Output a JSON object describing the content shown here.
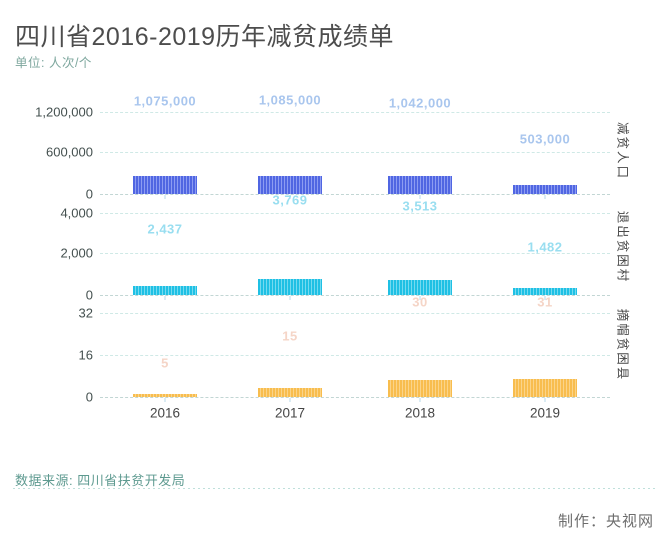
{
  "page": {
    "title": "四川省2016-2019历年减贫成绩单",
    "subtitle": "单位: 人次/个",
    "source": "数据来源: 四川省扶贫开发局",
    "credit": "制作：央视网"
  },
  "chart_data": {
    "type": "bar",
    "title": "四川省2016-2019历年减贫成绩单",
    "unit_note": "单位: 人次/个",
    "categories": [
      "2016",
      "2017",
      "2018",
      "2019"
    ],
    "legend": "none",
    "grid": "horizontal dashed gridlines, three stacked panels sharing the x-axis, panel titles rotated vertically on the right",
    "panels": [
      {
        "name": "减贫人口",
        "values": [
          1075000,
          1085000,
          1042000,
          503000
        ],
        "labels": [
          "1,075,000",
          "1,085,000",
          "1,042,000",
          "503,000"
        ],
        "yticks": [
          "1,200,000",
          "600,000",
          "0"
        ],
        "ylim": [
          0,
          1200000
        ],
        "bar_color": "#5066e2",
        "bar_stripe_color": "#8d9cf2",
        "label_color": "#a9c6ee"
      },
      {
        "name": "退出贫困村",
        "values": [
          2437,
          3769,
          3513,
          1482
        ],
        "labels": [
          "2,437",
          "3,769",
          "3,513",
          "1,482"
        ],
        "yticks": [
          "4,000",
          "2,000",
          "0"
        ],
        "ylim": [
          0,
          4000
        ],
        "bar_color": "#1fc0e4",
        "bar_stripe_color": "#74daf0",
        "label_color": "#99def0"
      },
      {
        "name": "摘帽贫困县",
        "values": [
          5,
          15,
          30,
          31
        ],
        "labels": [
          "5",
          "15",
          "30",
          "31"
        ],
        "yticks": [
          "32",
          "16",
          "0"
        ],
        "ylim": [
          0,
          32
        ],
        "bar_color": "#f8bd4e",
        "bar_stripe_color": "#fbd489",
        "label_color": "#f5d5c7"
      }
    ]
  }
}
